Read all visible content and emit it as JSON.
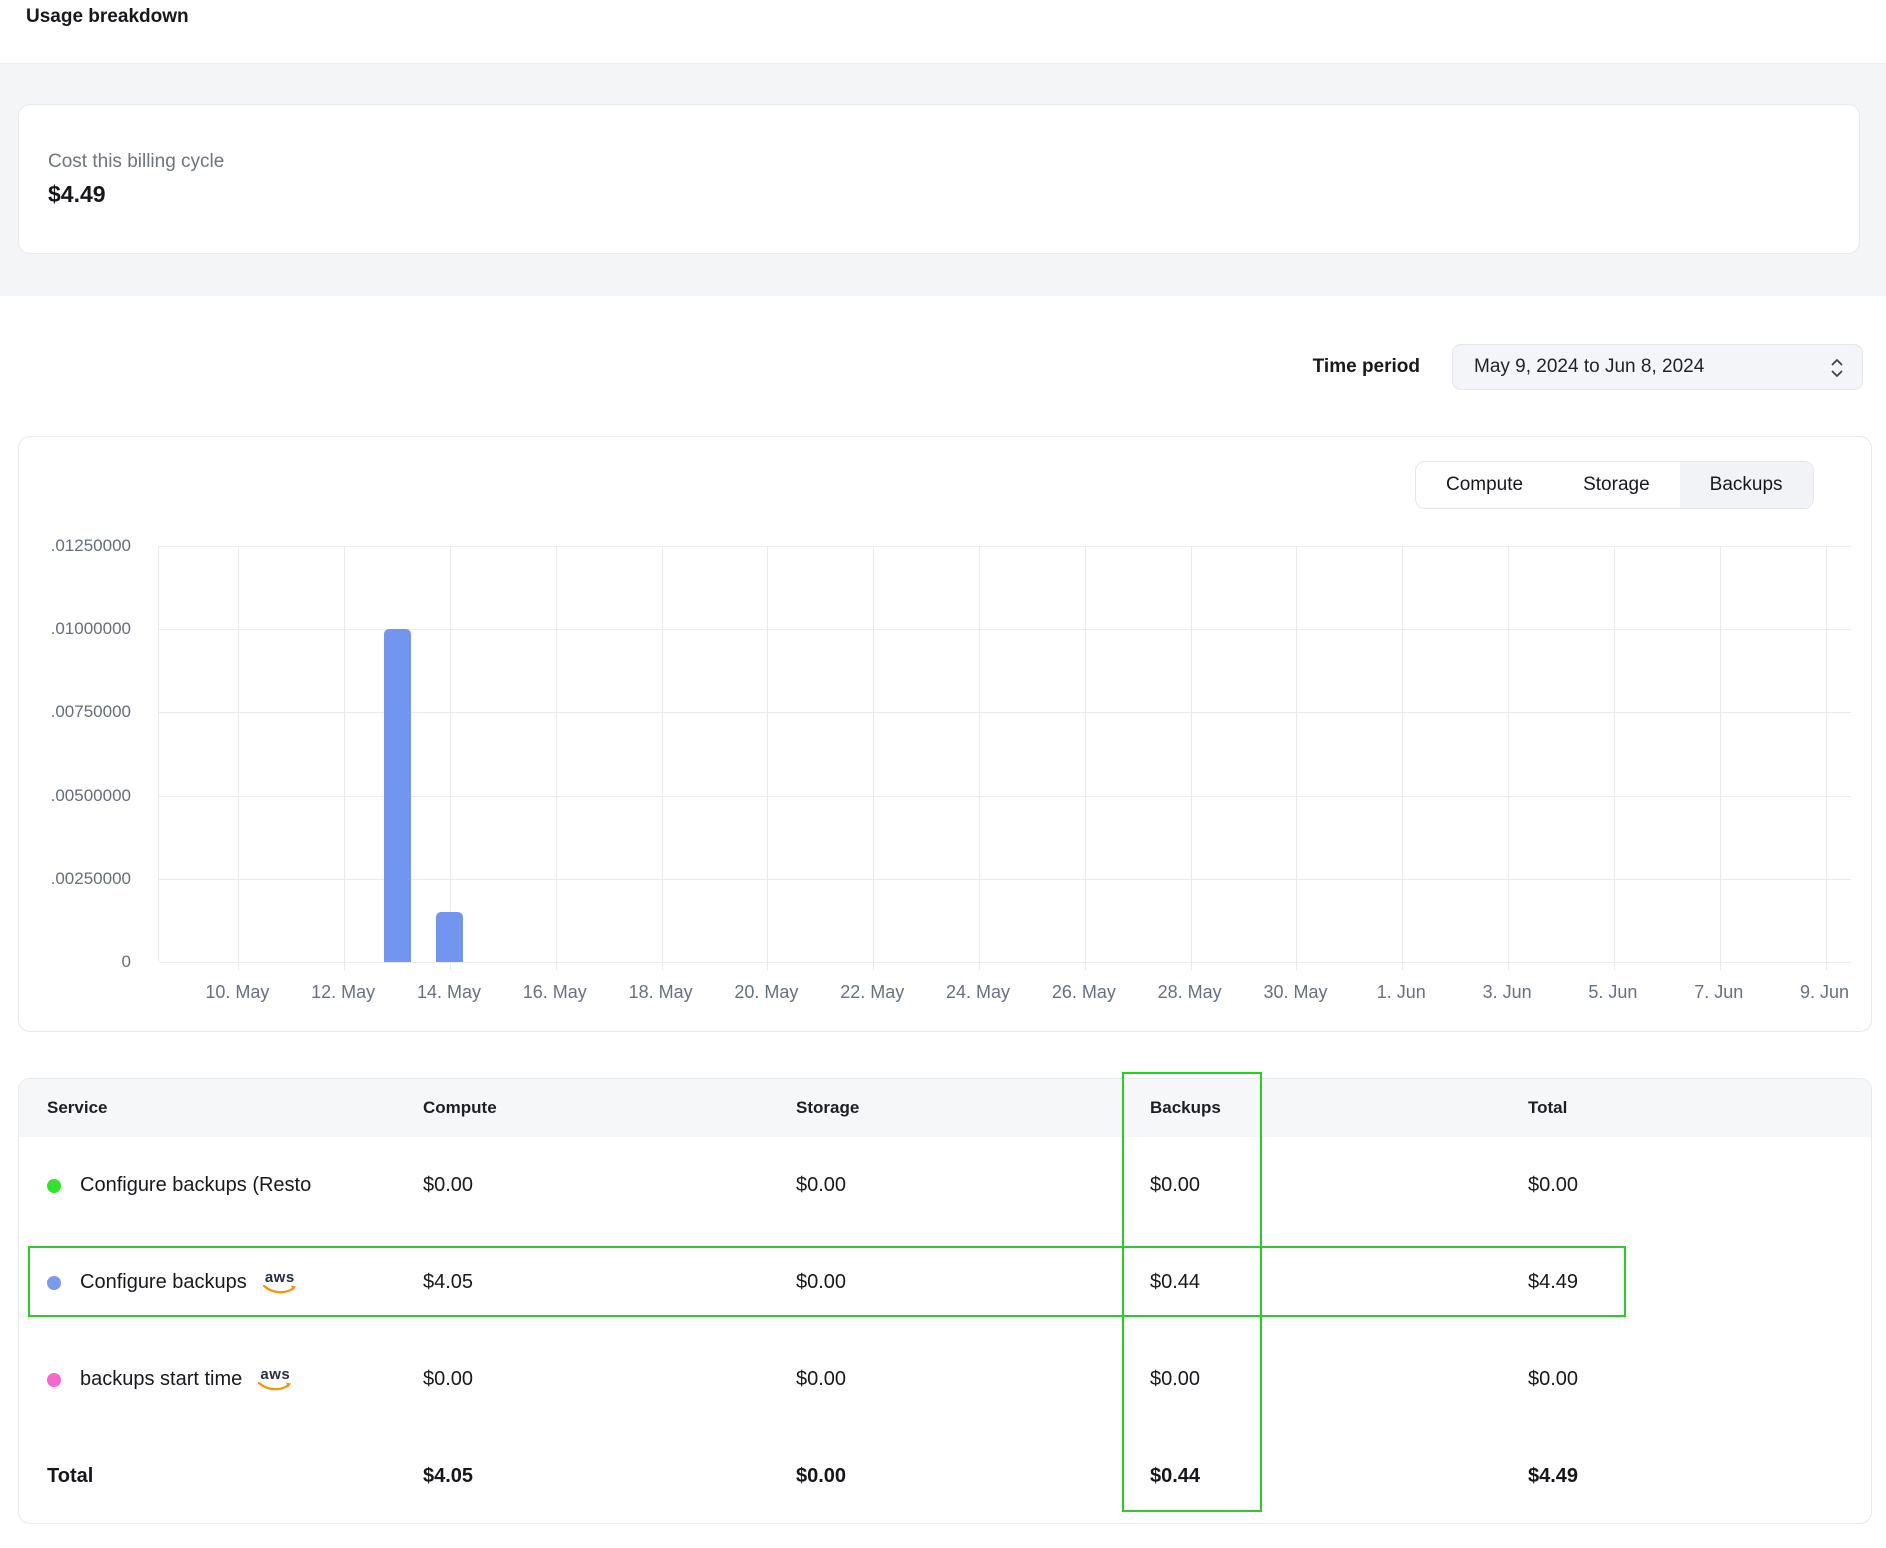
{
  "page": {
    "title": "Usage breakdown"
  },
  "summary": {
    "label": "Cost this billing cycle",
    "value": "$4.49"
  },
  "time_period": {
    "label": "Time period",
    "value": "May 9, 2024 to Jun 8, 2024"
  },
  "chart": {
    "tabs": [
      {
        "label": "Compute",
        "selected": false
      },
      {
        "label": "Storage",
        "selected": false
      },
      {
        "label": "Backups",
        "selected": true
      }
    ]
  },
  "chart_data": {
    "type": "bar",
    "title": "",
    "xlabel": "",
    "ylabel": "",
    "ylim": [
      0,
      0.0125
    ],
    "grid": true,
    "legend": "none",
    "bar_color": "#7296f0",
    "x_domain": [
      "May 9, 2024",
      "Jun 9, 2024"
    ],
    "days_span": 32,
    "y_ticks": [
      ".01250000",
      ".01000000",
      ".00750000",
      ".00500000",
      ".00250000",
      "0"
    ],
    "x_ticks": [
      {
        "day": 1,
        "label": "10. May"
      },
      {
        "day": 3,
        "label": "12. May"
      },
      {
        "day": 5,
        "label": "14. May"
      },
      {
        "day": 7,
        "label": "16. May"
      },
      {
        "day": 9,
        "label": "18. May"
      },
      {
        "day": 11,
        "label": "20. May"
      },
      {
        "day": 13,
        "label": "22. May"
      },
      {
        "day": 15,
        "label": "24. May"
      },
      {
        "day": 17,
        "label": "26. May"
      },
      {
        "day": 19,
        "label": "28. May"
      },
      {
        "day": 21,
        "label": "30. May"
      },
      {
        "day": 23,
        "label": "1. Jun"
      },
      {
        "day": 25,
        "label": "3. Jun"
      },
      {
        "day": 27,
        "label": "5. Jun"
      },
      {
        "day": 29,
        "label": "7. Jun"
      },
      {
        "day": 31,
        "label": "9. Jun"
      }
    ],
    "bars": [
      {
        "day": 4,
        "label": "13-May",
        "value": 0.01
      },
      {
        "day": 5,
        "label": "14-May",
        "value": 0.0015
      }
    ]
  },
  "table": {
    "headers": [
      "Service",
      "Compute",
      "Storage",
      "Backups",
      "Total"
    ],
    "aws_logo_text": "aws",
    "rows": [
      {
        "dot_color": "#2ee52a",
        "service": "Configure backups (Resto",
        "compute": "$0.00",
        "storage": "$0.00",
        "backups": "$0.00",
        "total": "$0.00"
      },
      {
        "dot_color": "#7b99ee",
        "service": "Configure backups",
        "compute": "$4.05",
        "storage": "$0.00",
        "backups": "$0.44",
        "total": "$4.49"
      },
      {
        "dot_color": "#f768ce",
        "service": "backups start time",
        "compute": "$0.00",
        "storage": "$0.00",
        "backups": "$0.00",
        "total": "$0.00"
      }
    ],
    "total_row": {
      "label": "Total",
      "compute": "$4.05",
      "storage": "$0.00",
      "backups": "$0.44",
      "total": "$4.49"
    }
  },
  "annotations": {
    "color": "#24d024"
  }
}
